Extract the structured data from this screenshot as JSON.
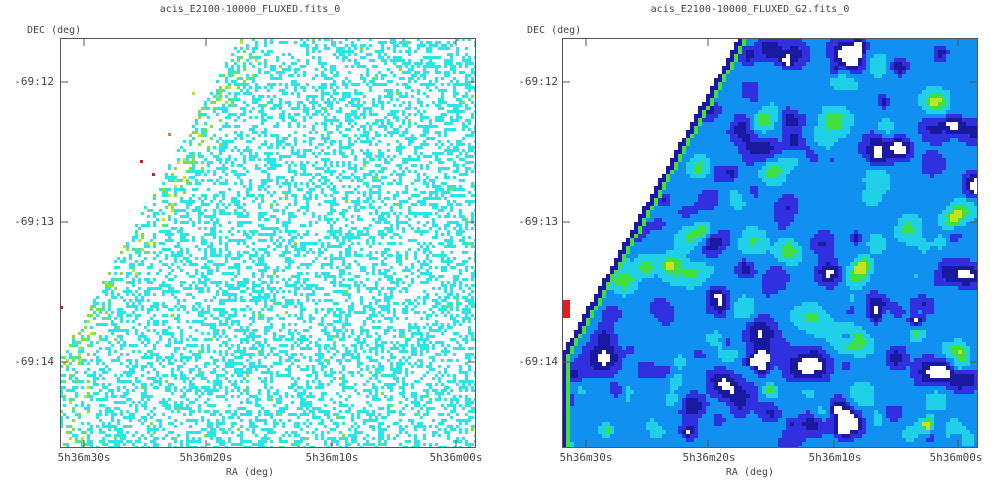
{
  "chart_data": [
    {
      "type": "heatmap",
      "title": "acis_E2100-10000_FLUXED.fits_0",
      "xlabel": "RA (deg)",
      "ylabel": "DEC (deg)",
      "x_ticks": [
        "5h36m30s",
        "5h36m20s",
        "5h36m10s",
        "5h36m00s"
      ],
      "y_ticks": [
        "-69:12",
        "-69:13",
        "-69:14"
      ],
      "colormap": [
        "#ffffff",
        "#28e6e6",
        "#80e040",
        "#c8e020",
        "#e08020",
        "#cc2020"
      ],
      "description_values": "sparse pixel counts in lower-right of coverage edge, mostly single-count pixels",
      "grid": false
    },
    {
      "type": "heatmap",
      "title": "acis_E2100-10000_FLUXED_G2.fits_0",
      "xlabel": "RA (deg)",
      "ylabel": "DEC (deg)",
      "x_ticks": [
        "5h36m30s",
        "5h36m20s",
        "5h36m10s",
        "5h36m00s"
      ],
      "y_ticks": [
        "-69:12",
        "-69:13",
        "-69:14"
      ],
      "colormap": [
        "#ffffff",
        "#1a1aa0",
        "#3030e0",
        "#1090f0",
        "#20d0e8",
        "#40e040",
        "#c8e020",
        "#f0a000",
        "#e02020"
      ],
      "grid": false
    }
  ]
}
